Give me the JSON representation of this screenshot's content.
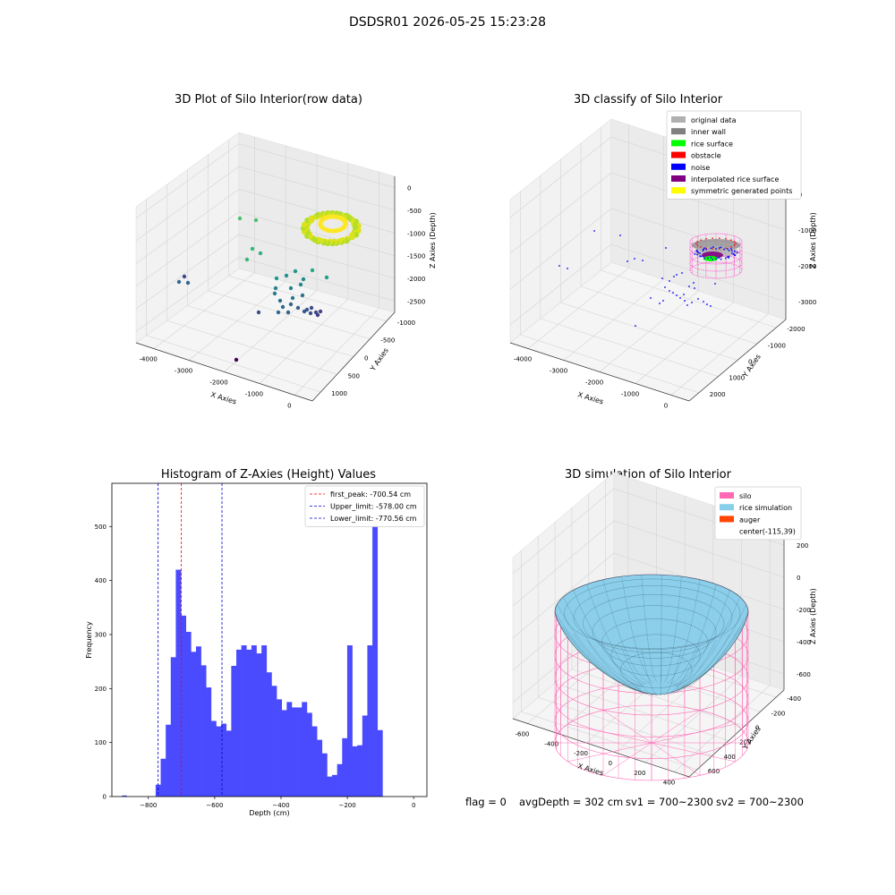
{
  "figure_title": "DSDSR01 2026-05-25 15:23:28",
  "status": {
    "flag": "flag = 0",
    "avg_depth": "avgDepth = 302 cm",
    "sv1": "sv1 = 700~2300",
    "sv2": "sv2 = 700~2300"
  },
  "colors": {
    "hist_bar": "#4a4aff",
    "first_peak": "#ff0000",
    "limits": "#0000cc",
    "silo_wire": "#ff69b4",
    "rice_surface": "#87ceeb"
  },
  "chart_data": [
    {
      "type": "scatter",
      "projection": "3d",
      "title": "3D Plot of Silo Interior(row data)",
      "xlabel": "X Axies",
      "ylabel": "Y Axies",
      "zlabel": "Z Axies (Depth)",
      "xticks": [
        "-4000",
        "-3000",
        "-2000",
        "-1000",
        "0"
      ],
      "yticks": [
        "-1000",
        "-500",
        "0",
        "500",
        "1000"
      ],
      "zticks": [
        "0",
        "-500",
        "-1000",
        "-1500",
        "-2000",
        "-2500"
      ],
      "colormap": "viridis",
      "grid": true
    },
    {
      "type": "scatter",
      "projection": "3d",
      "title": "3D classify of Silo Interior",
      "xlabel": "X Axies",
      "ylabel": "Y Axies",
      "zlabel": "Z Axies (Depth)",
      "xticks": [
        "-4000",
        "-3000",
        "-2000",
        "-1000",
        "0"
      ],
      "yticks": [
        "-2000",
        "-1000",
        "0",
        "1000",
        "2000"
      ],
      "zticks": [
        "0",
        "-1000",
        "-2000",
        "-3000"
      ],
      "legend_position": "top-right",
      "legend": [
        {
          "label": "original data",
          "color": "#b0b0b0"
        },
        {
          "label": "inner wall",
          "color": "#808080"
        },
        {
          "label": "rice surface",
          "color": "#00ff00"
        },
        {
          "label": "obstacle",
          "color": "#ff0000"
        },
        {
          "label": "noise",
          "color": "#0000ff"
        },
        {
          "label": "interpolated rice surface",
          "color": "#800080"
        },
        {
          "label": "symmetric generated points",
          "color": "#ffff00"
        }
      ],
      "grid": true
    },
    {
      "type": "bar",
      "title": "Histogram of Z-Axies (Height) Values",
      "xlabel": "Depth (cm)",
      "ylabel": "Frequency",
      "xlim": [
        -910,
        40
      ],
      "ylim": [
        0,
        580
      ],
      "xticks": [
        -800,
        -600,
        -400,
        -200,
        0
      ],
      "yticks": [
        0,
        100,
        200,
        300,
        400,
        500
      ],
      "bin_start": -778,
      "bin_width": 15.2,
      "values": [
        22,
        70,
        133,
        258,
        420,
        335,
        305,
        268,
        278,
        243,
        202,
        140,
        130,
        135,
        122,
        242,
        272,
        280,
        272,
        280,
        265,
        280,
        230,
        205,
        180,
        160,
        175,
        165,
        165,
        175,
        155,
        130,
        105,
        80,
        37,
        40,
        60,
        108,
        280,
        93,
        95,
        150,
        280,
        555,
        123
      ],
      "outliers": [
        {
          "x": -872,
          "y": 2
        }
      ],
      "vlines": [
        {
          "x": -700.54,
          "label": "first_peak: -700.54 cm",
          "color": "#ff0000"
        },
        {
          "x": -578.0,
          "label": "Upper_limit: -578.00 cm",
          "color": "#0000cc"
        },
        {
          "x": -770.56,
          "label": "Lower_limit: -770.56 cm",
          "color": "#0000cc"
        }
      ],
      "legend_position": "top-right"
    },
    {
      "type": "surface",
      "projection": "3d",
      "title": "3D simulation of Silo Interior",
      "xlabel": "X Axies",
      "ylabel": "Y Axies",
      "zlabel": "Z Axies (Depth)",
      "xticks": [
        "-600",
        "-400",
        "-200",
        "0",
        "200",
        "400"
      ],
      "yticks": [
        "-400",
        "-200",
        "0",
        "200",
        "400",
        "600"
      ],
      "zticks": [
        "200",
        "0",
        "-200",
        "-400",
        "-600"
      ],
      "legend_position": "top-right",
      "legend": [
        {
          "label": "silo",
          "color": "#ff69b4"
        },
        {
          "label": "rice simulation",
          "color": "#87ceeb"
        },
        {
          "label": "auger",
          "color": "#ff4500"
        },
        {
          "label": "center(-115,39)",
          "color": ""
        }
      ],
      "grid": true
    }
  ]
}
